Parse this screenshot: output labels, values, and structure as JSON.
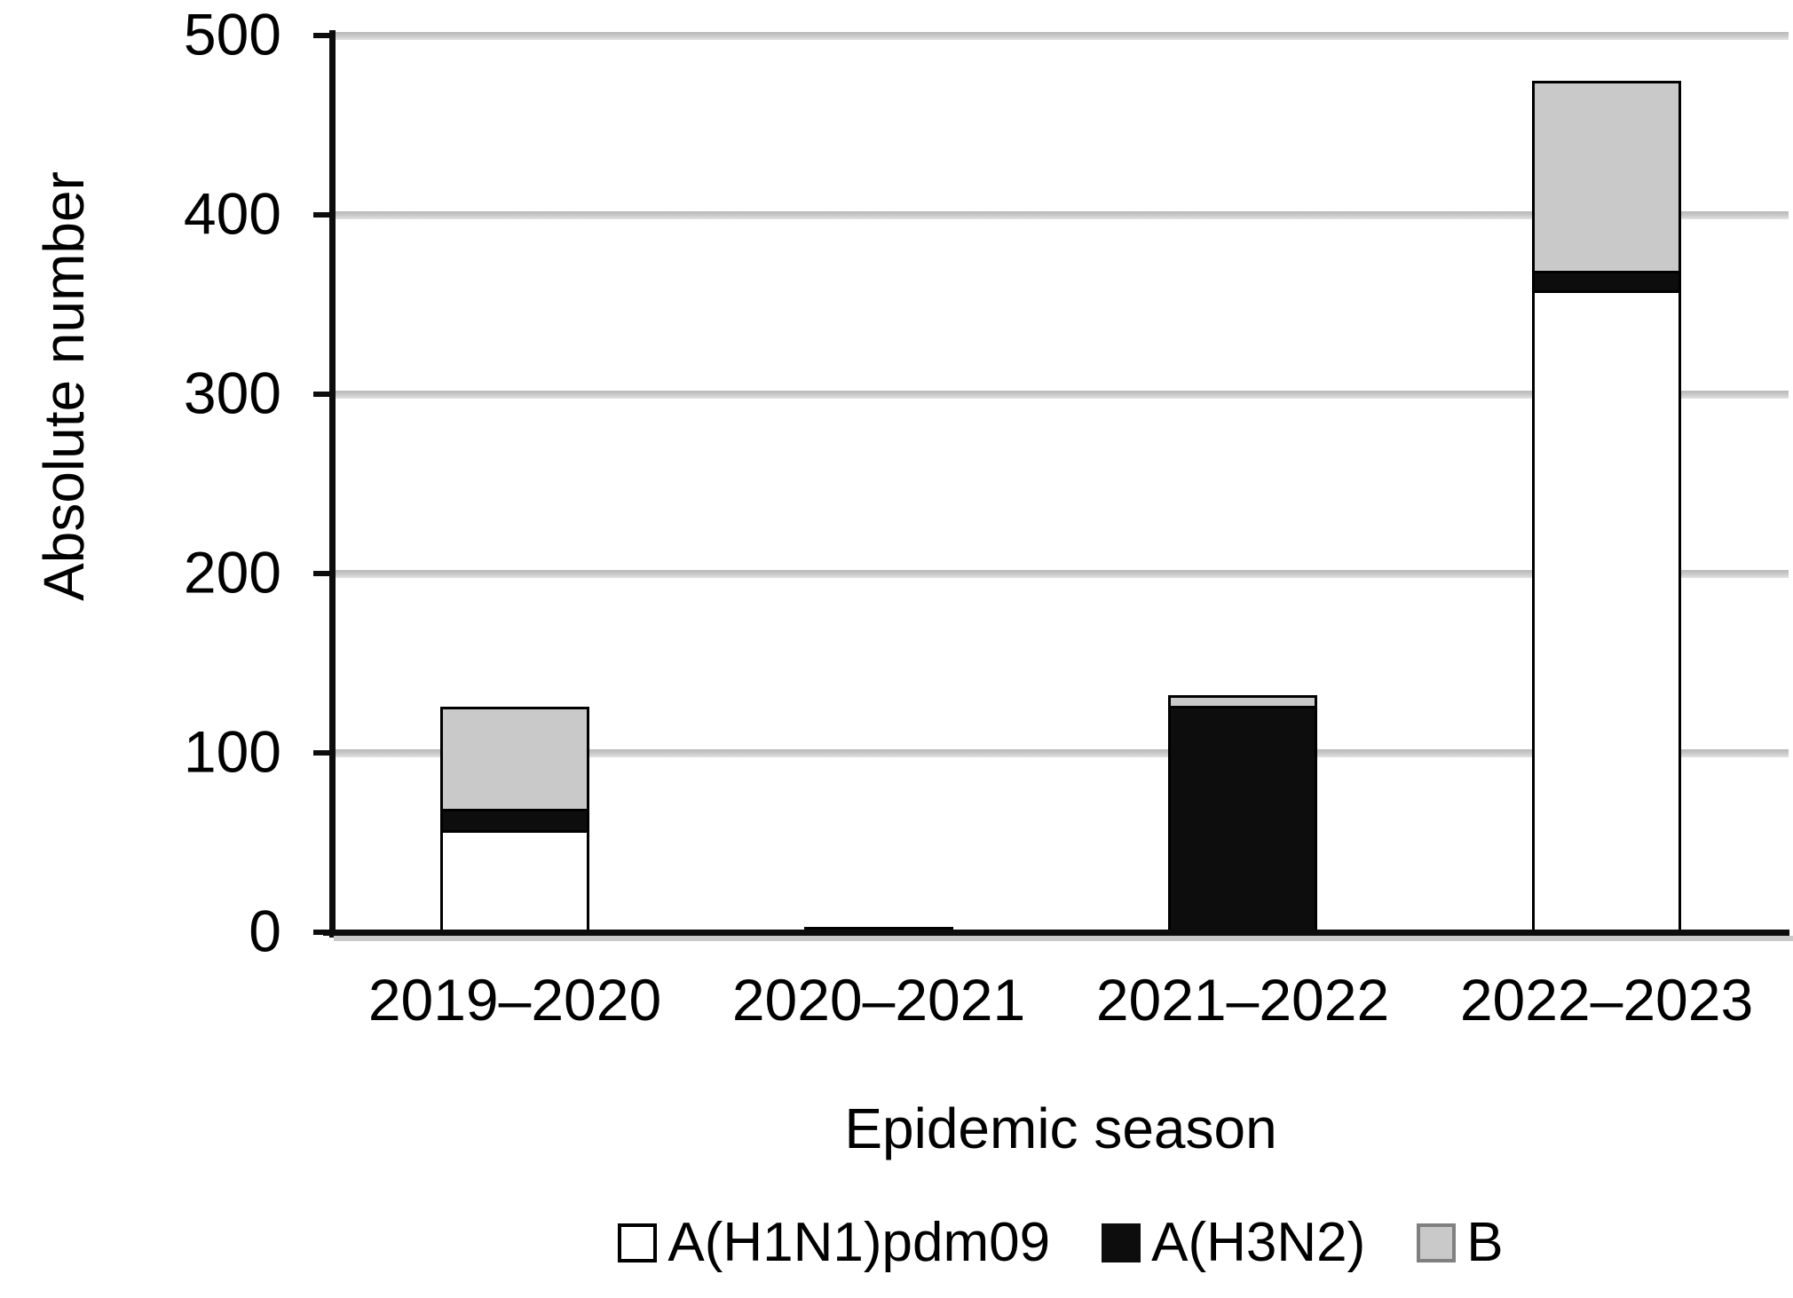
{
  "chart_data": {
    "type": "bar",
    "subtype": "stacked-vertical",
    "title": "",
    "categories": [
      "2019–2020",
      "2020–2021",
      "2021–2022",
      "2022–2023"
    ],
    "series": [
      {
        "name": "A(H1N1)pdm09",
        "color": "#ffffff",
        "swatch_border": "#000000",
        "values": [
          57,
          0,
          0,
          358
        ]
      },
      {
        "name": "A(H3N2)",
        "color": "#0d0d0d",
        "swatch_border": "#0d0d0d",
        "values": [
          12,
          3,
          126,
          11
        ]
      },
      {
        "name": "B",
        "color": "#c9c9c9",
        "swatch_border": "#808080",
        "values": [
          57,
          0,
          6,
          106
        ]
      }
    ],
    "stacked_totals": [
      126,
      3,
      132,
      475
    ],
    "xlabel": "Epidemic season",
    "ylabel": "Absolute number",
    "ylim": [
      0,
      500
    ],
    "yticks": [
      0,
      100,
      200,
      300,
      400,
      500
    ],
    "grid": "horizontal",
    "legend_position": "bottom",
    "colors": {
      "axis": "#0d0d0d",
      "gridline": "#c7c7c7",
      "bar_outline": "#000000",
      "background": "#ffffff"
    }
  }
}
